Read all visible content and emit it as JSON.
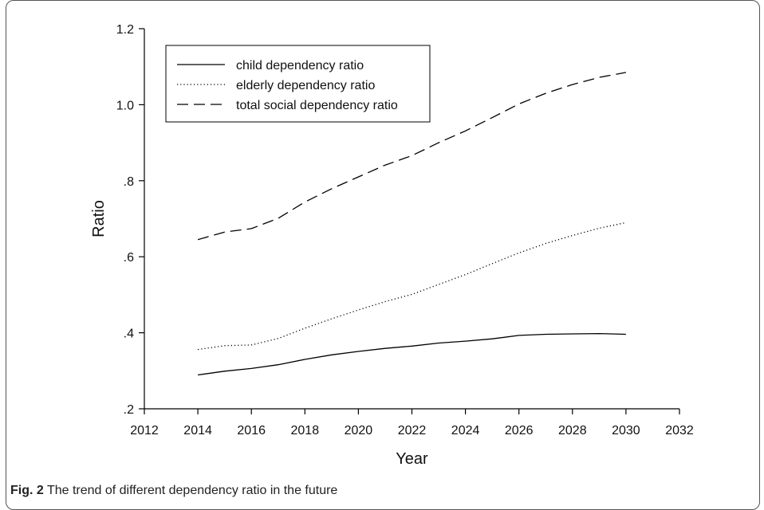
{
  "caption": {
    "label": "Fig. 2",
    "text": "The trend of different dependency ratio in the future"
  },
  "chart_data": {
    "type": "line",
    "title": "",
    "xlabel": "Year",
    "ylabel": "Ratio",
    "xlim": [
      2012,
      2032
    ],
    "ylim": [
      0.2,
      1.2
    ],
    "xticks": [
      2012,
      2014,
      2016,
      2018,
      2020,
      2022,
      2024,
      2026,
      2028,
      2030,
      2032
    ],
    "xtick_labels": [
      "2012",
      "2014",
      "2016",
      "2018",
      "2020",
      "2022",
      "2024",
      "2026",
      "2028",
      "2030",
      "2032"
    ],
    "yticks": [
      0.2,
      0.4,
      0.6,
      0.8,
      1.0,
      1.2
    ],
    "ytick_labels": [
      ".2",
      ".4",
      ".6",
      ".8",
      "1.0",
      "1.2"
    ],
    "grid": false,
    "legend_position": "top-left",
    "x": [
      2014,
      2015,
      2016,
      2017,
      2018,
      2019,
      2020,
      2021,
      2022,
      2023,
      2024,
      2025,
      2026,
      2027,
      2028,
      2029,
      2030
    ],
    "series": [
      {
        "name": "child dependency ratio",
        "style": "solid",
        "color": "#000000",
        "values": [
          0.289,
          0.299,
          0.306,
          0.316,
          0.33,
          0.342,
          0.351,
          0.359,
          0.365,
          0.373,
          0.378,
          0.384,
          0.393,
          0.396,
          0.397,
          0.398,
          0.396
        ]
      },
      {
        "name": "elderly dependency ratio",
        "style": "dotted",
        "color": "#000000",
        "values": [
          0.356,
          0.366,
          0.368,
          0.385,
          0.412,
          0.437,
          0.46,
          0.482,
          0.501,
          0.527,
          0.553,
          0.582,
          0.61,
          0.635,
          0.656,
          0.675,
          0.69
        ]
      },
      {
        "name": "total social dependency ratio",
        "style": "dashed",
        "color": "#000000",
        "values": [
          0.645,
          0.665,
          0.674,
          0.701,
          0.744,
          0.779,
          0.81,
          0.841,
          0.866,
          0.9,
          0.931,
          0.966,
          1.002,
          1.03,
          1.053,
          1.072,
          1.085
        ]
      }
    ]
  }
}
